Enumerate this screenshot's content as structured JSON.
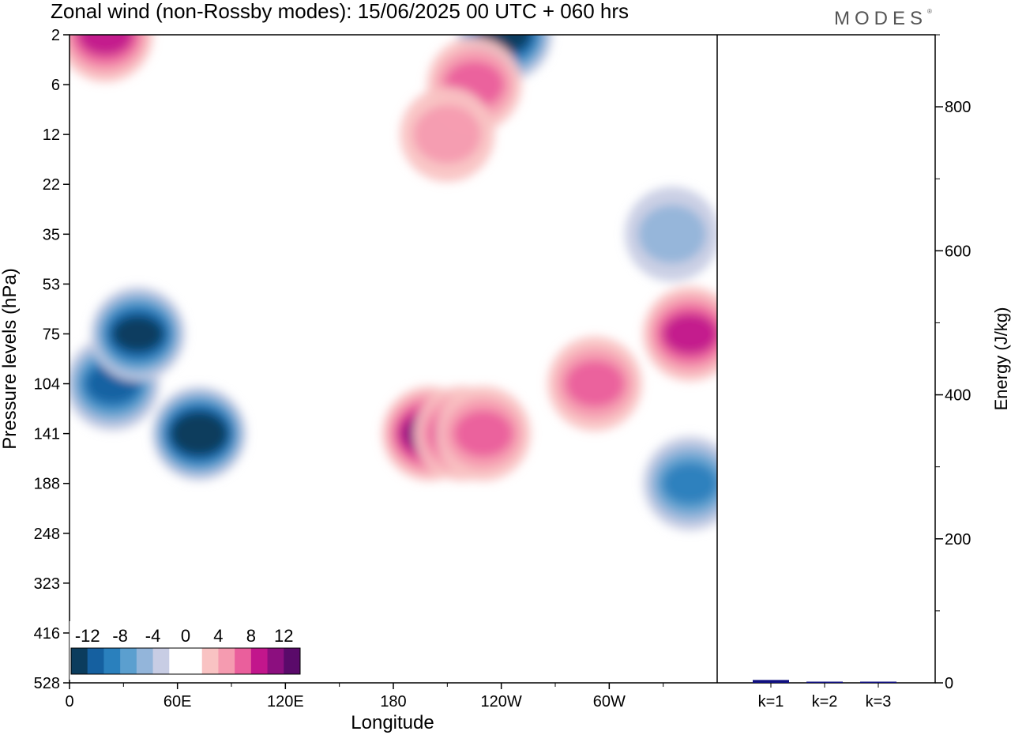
{
  "header": {
    "title": "Zonal wind (non-Rossby modes):  15/06/2025  00 UTC  + 060 hrs",
    "brand": "MODES"
  },
  "chart_data": [
    {
      "type": "heatmap",
      "title": "Zonal wind (non-Rossby modes):  15/06/2025  00 UTC  + 060 hrs",
      "xlabel": "Longitude",
      "ylabel": "Pressure levels (hPa)",
      "x_ticks": [
        "0",
        "60E",
        "120E",
        "180",
        "120W",
        "60W"
      ],
      "y_ticks": [
        "2",
        "6",
        "12",
        "22",
        "35",
        "53",
        "75",
        "104",
        "141",
        "188",
        "248",
        "323",
        "416",
        "528"
      ],
      "y_axis": "pressure, increasing downward",
      "colorbar": {
        "tick_labels": [
          "-12",
          "-8",
          "-4",
          "0",
          "4",
          "8",
          "12"
        ],
        "colors": [
          "#0b3c5d",
          "#1560a0",
          "#2a80bd",
          "#5b9fcf",
          "#93b5da",
          "#c8cde4",
          "#ffffff",
          "#ffffff",
          "#f9c3c3",
          "#f59bb0",
          "#ea5f9c",
          "#c2168c",
          "#8c0f7f",
          "#5a0a6a"
        ],
        "placement": "bottom-left"
      },
      "features": [
        {
          "lon": 72,
          "level": 141,
          "value": -13
        },
        {
          "lon": 24,
          "level": 104,
          "value": -9
        },
        {
          "lon": 38,
          "level": 75,
          "value": -11
        },
        {
          "lon": 200,
          "level": 141,
          "value": 10
        },
        {
          "lon": 218,
          "level": 141,
          "value": 7
        },
        {
          "lon": 230,
          "level": 141,
          "value": 6
        },
        {
          "lon": 292,
          "level": 104,
          "value": 6
        },
        {
          "lon": 345,
          "level": 75,
          "value": 7
        },
        {
          "lon": 242,
          "level": 2,
          "value": -12
        },
        {
          "lon": 20,
          "level": 2,
          "value": 8
        },
        {
          "lon": 345,
          "level": 188,
          "value": -7
        },
        {
          "lon": 225,
          "level": 6,
          "value": 6
        },
        {
          "lon": 210,
          "level": 12,
          "value": 3
        },
        {
          "lon": 335,
          "level": 35,
          "value": -3
        }
      ]
    },
    {
      "type": "bar",
      "categories": [
        "k=1",
        "k=2",
        "k=3"
      ],
      "values": [
        4,
        1.5,
        1
      ],
      "ylabel": "Energy (J/kg)",
      "ylim": [
        0,
        900
      ],
      "y_ticks": [
        0,
        200,
        400,
        600,
        800
      ],
      "bar_color": "#101080"
    }
  ]
}
